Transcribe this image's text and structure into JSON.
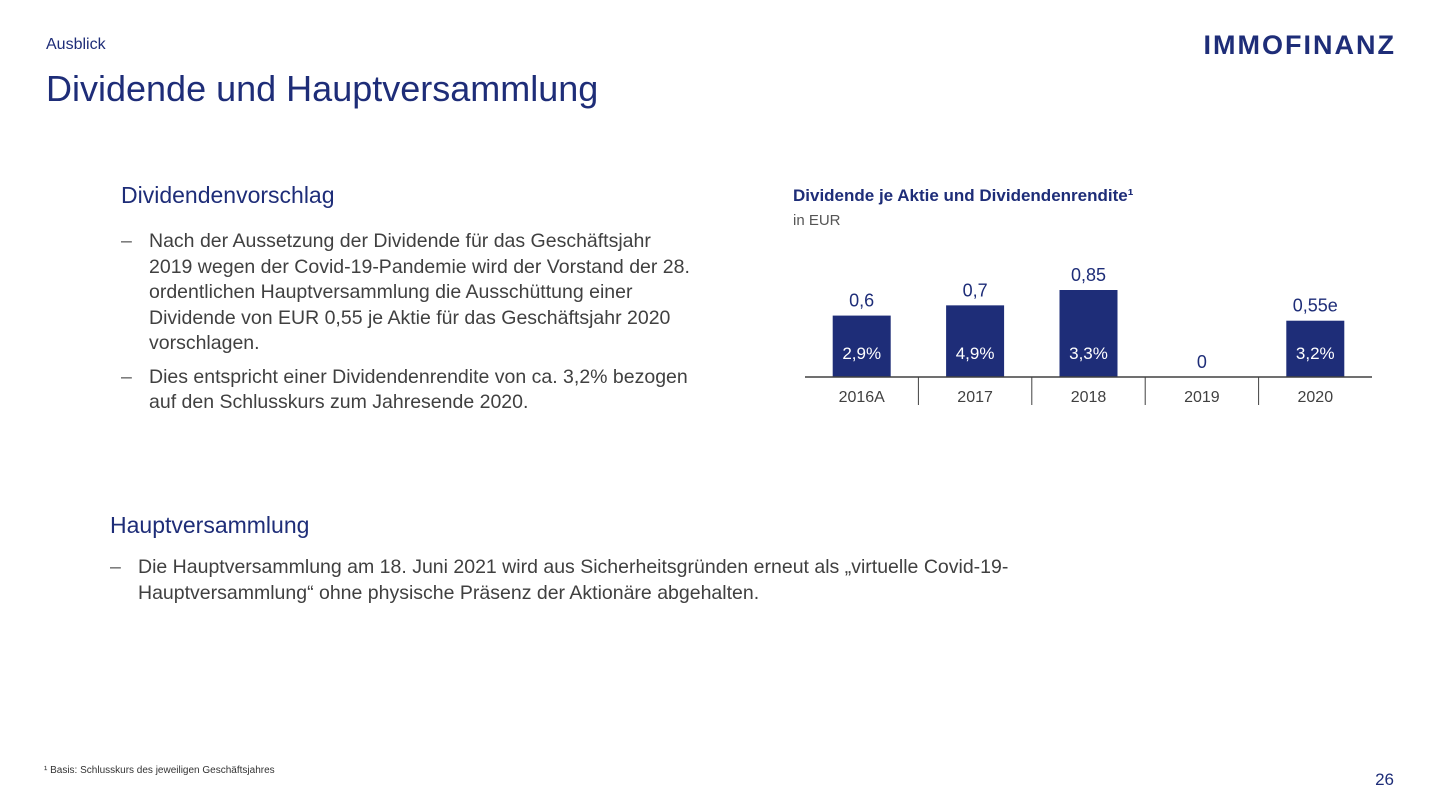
{
  "header": {
    "section": "Ausblick",
    "title": "Dividende und Hauptversammlung",
    "logo": "IMMOFINANZ"
  },
  "dividend_proposal": {
    "heading": "Dividendenvorschlag",
    "bullets": [
      "Nach der Aussetzung der Dividende für das Geschäftsjahr 2019 wegen der Covid-19-Pandemie wird der Vorstand der 28. ordentlichen Hauptversammlung die Ausschüttung einer Dividende von EUR 0,55 je Aktie für das Geschäftsjahr 2020 vorschlagen.",
      "Dies entspricht einer Dividendenrendite von ca. 3,2% bezogen auf den Schlusskurs zum Jahresende 2020."
    ]
  },
  "agm": {
    "heading": "Hauptversammlung",
    "bullets": [
      "Die Hauptversammlung am 18. Juni 2021 wird aus Sicherheitsgründen erneut als „virtuelle Covid-19-Hauptversammlung“ ohne physische Präsenz der Aktionäre abgehalten."
    ]
  },
  "chart_data": {
    "type": "bar",
    "title": "Dividende je Aktie und Dividendenrendite¹",
    "unit": "in EUR",
    "categories": [
      "2016A",
      "2017",
      "2018",
      "2019",
      "2020"
    ],
    "values": [
      0.6,
      0.7,
      0.85,
      0,
      0.55
    ],
    "value_labels": [
      "0,6",
      "0,7",
      "0,85",
      "0",
      "0,55e"
    ],
    "yield_labels": [
      "2,9%",
      "4,9%",
      "3,3%",
      "",
      "3,2%"
    ],
    "bar_color": "#1e2d78",
    "ylim": [
      0,
      0.85
    ]
  },
  "footnote": "¹ Basis: Schlusskurs des jeweiligen Geschäftsjahres",
  "page_number": "26"
}
